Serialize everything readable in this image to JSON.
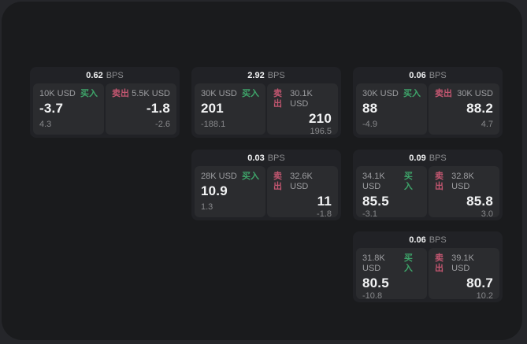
{
  "window": {
    "background": "#1a1b1d",
    "outer_background": "#25262a"
  },
  "colors": {
    "card_bg": "#212226",
    "panel_bg": "#2b2c2f",
    "buy_accent": "#3ea56a",
    "sell_accent": "#c25670",
    "text_primary": "#f3f4f5",
    "text_secondary": "#9c9da0"
  },
  "shared": {
    "bps_unit": "BPS",
    "buy_label": "买入",
    "sell_label": "卖出"
  },
  "cards": [
    {
      "grid": {
        "row": 0,
        "col": 0
      },
      "spread_bps": "0.62",
      "buy": {
        "notional": "10K USD",
        "price": "-3.7",
        "delta": "4.3"
      },
      "sell": {
        "notional": "5.5K USD",
        "price": "-1.8",
        "delta": "-2.6"
      }
    },
    {
      "grid": {
        "row": 0,
        "col": 1
      },
      "spread_bps": "2.92",
      "buy": {
        "notional": "30K USD",
        "price": "201",
        "delta": "-188.1"
      },
      "sell": {
        "notional": "30.1K USD",
        "price": "210",
        "delta": "196.5"
      }
    },
    {
      "grid": {
        "row": 0,
        "col": 2
      },
      "spread_bps": "0.06",
      "buy": {
        "notional": "30K USD",
        "price": "88",
        "delta": "-4.9"
      },
      "sell": {
        "notional": "30K USD",
        "price": "88.2",
        "delta": "4.7"
      }
    },
    {
      "grid": {
        "row": 1,
        "col": 1
      },
      "spread_bps": "0.03",
      "buy": {
        "notional": "28K USD",
        "price": "10.9",
        "delta": "1.3"
      },
      "sell": {
        "notional": "32.6K USD",
        "price": "11",
        "delta": "-1.8"
      }
    },
    {
      "grid": {
        "row": 1,
        "col": 2
      },
      "spread_bps": "0.09",
      "buy": {
        "notional": "34.1K USD",
        "price": "85.5",
        "delta": "-3.1"
      },
      "sell": {
        "notional": "32.8K USD",
        "price": "85.8",
        "delta": "3.0"
      }
    },
    {
      "grid": {
        "row": 2,
        "col": 2
      },
      "spread_bps": "0.06",
      "buy": {
        "notional": "31.8K USD",
        "price": "80.5",
        "delta": "-10.8"
      },
      "sell": {
        "notional": "39.1K USD",
        "price": "80.7",
        "delta": "10.2"
      }
    }
  ]
}
